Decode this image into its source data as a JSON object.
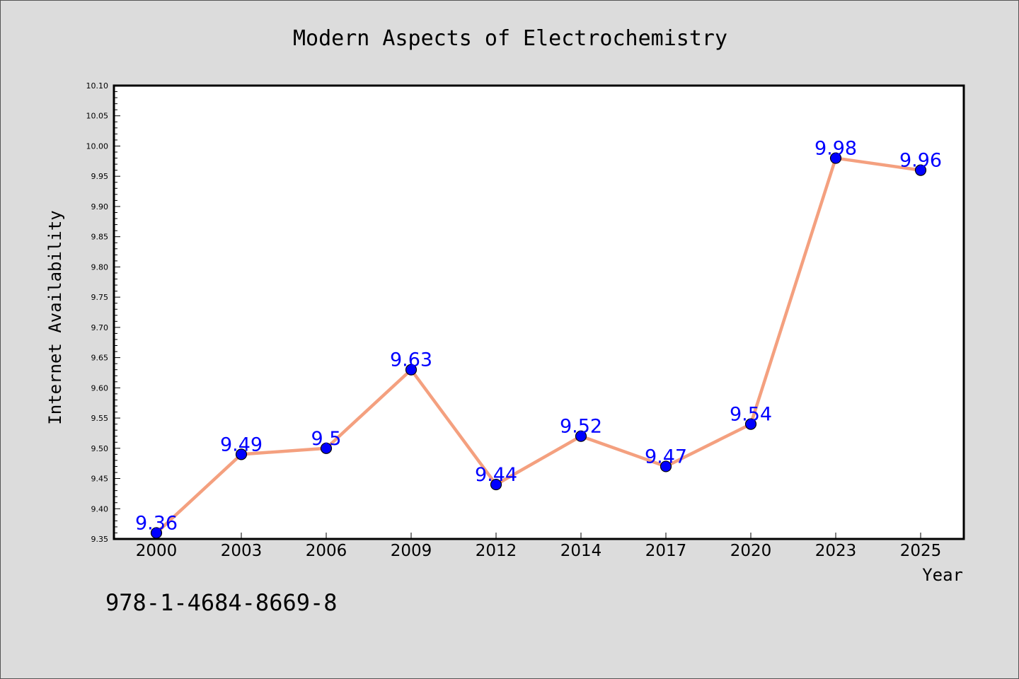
{
  "chart_data": {
    "type": "line",
    "title": "Modern Aspects of Electrochemistry",
    "xlabel": "Year",
    "ylabel": "Internet Availability",
    "categories": [
      "2000",
      "2003",
      "2006",
      "2009",
      "2012",
      "2014",
      "2017",
      "2020",
      "2023",
      "2025"
    ],
    "values": [
      9.36,
      9.49,
      9.5,
      9.63,
      9.44,
      9.52,
      9.47,
      9.54,
      9.98,
      9.96
    ],
    "data_labels": [
      "9.36",
      "9.49",
      "9.5",
      "9.63",
      "9.44",
      "9.52",
      "9.47",
      "9.54",
      "9.98",
      "9.96"
    ],
    "ylim": [
      9.35,
      10.1
    ],
    "yticks": [
      "9.35",
      "9.40",
      "9.45",
      "9.50",
      "9.55",
      "9.60",
      "9.65",
      "9.70",
      "9.75",
      "9.80",
      "9.85",
      "9.90",
      "9.95",
      "10.00",
      "10.05",
      "10.10"
    ],
    "grid": false,
    "legend": "none",
    "colors": {
      "line": "#f4a07f",
      "marker_fill": "#0000ff",
      "marker_edge": "#000000",
      "data_label": "#0000ff",
      "background": "#dcdcdc",
      "plot_background": "#ffffff"
    }
  },
  "footer": {
    "isbn": "978-1-4684-8669-8"
  }
}
